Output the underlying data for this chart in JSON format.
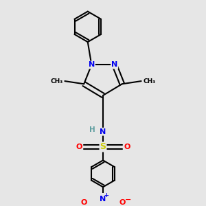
{
  "bg_color": "#e6e6e6",
  "atom_colors": {
    "C": "#000000",
    "N": "#0000ee",
    "O": "#ff0000",
    "S": "#cccc00",
    "H": "#5f9ea0"
  },
  "bond_color": "#000000",
  "bond_width": 1.5,
  "fig_size": [
    3.0,
    3.0
  ],
  "dpi": 100
}
